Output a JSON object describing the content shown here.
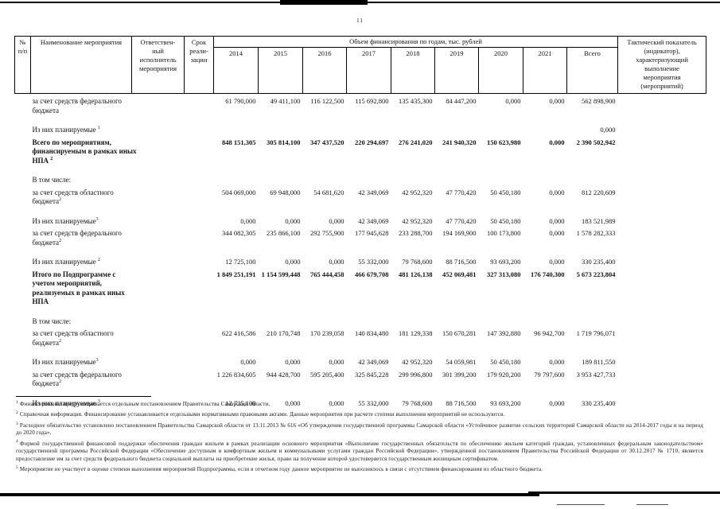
{
  "page_number": "11",
  "table": {
    "header": {
      "num": "№\nп/п",
      "name": "Наименование мероприятия",
      "executor": "Ответствен-\nный\nисполнитель\nмероприятия",
      "term": "Срок\nреали-\nзации",
      "finance_group": "Объем финансирования по годам, тыс. рублей",
      "years": [
        "2014",
        "2015",
        "2016",
        "2017",
        "2018",
        "2019",
        "2020",
        "2021",
        "Всего"
      ],
      "indicator": "Тактический показатель\n(индикатор),\nхарактеризующий\nвыполнение\nмероприятия\n(мероприятий)"
    },
    "rows": [
      {
        "label": "за счет средств федерального бюджета",
        "sup": "",
        "bold": false,
        "gap": false,
        "values": [
          "61 790,000",
          "49 411,100",
          "116 122,500",
          "115 692,800",
          "135 435,300",
          "84 447,200",
          "0,000",
          "0,000",
          "562 898,900"
        ]
      },
      {
        "label": "Из них планируемые ",
        "sup": "1",
        "bold": false,
        "gap": true,
        "values": [
          "",
          "",
          "",
          "",
          "",
          "",
          "",
          "",
          "0,000"
        ]
      },
      {
        "label": "Всего по мероприятиям, финансируемым в рамках иных НПА ",
        "sup": "2",
        "bold": true,
        "gap": false,
        "values": [
          "848 151,305",
          "305 814,100",
          "347 437,520",
          "220 294,697",
          "276 241,020",
          "241 940,320",
          "150 623,980",
          "0,000",
          "2 390 502,942"
        ]
      },
      {
        "label": "В том числе:",
        "sup": "",
        "bold": false,
        "gap": true,
        "values": []
      },
      {
        "label": "за счет средств областного бюджета",
        "sup": "2",
        "bold": false,
        "gap": false,
        "values": [
          "504 069,000",
          "69 948,000",
          "54 681,620",
          "42 349,069",
          "42 952,320",
          "47 770,420",
          "50 450,180",
          "0,000",
          "812 220,609"
        ]
      },
      {
        "label": "Из них планируемые",
        "sup": "3",
        "bold": false,
        "gap": true,
        "values": [
          "0,000",
          "0,000",
          "0,000",
          "42 349,069",
          "42 952,320",
          "47 770,420",
          "50 450,180",
          "0,000",
          "183 521,989"
        ]
      },
      {
        "label": "за счет средств федерального бюджета",
        "sup": "2",
        "bold": false,
        "gap": false,
        "values": [
          "344 082,305",
          "235 866,100",
          "292 755,900",
          "177 945,628",
          "233 288,700",
          "194 169,900",
          "100 173,800",
          "0,000",
          "1 578 282,333"
        ]
      },
      {
        "label": "Из них планируемые ",
        "sup": "2",
        "bold": false,
        "gap": true,
        "values": [
          "12 725,100",
          "0,000",
          "0,000",
          "55 332,000",
          "79 768,600",
          "88 716,500",
          "93 693,200",
          "0,000",
          "330 235,400"
        ]
      },
      {
        "label": "Итого по Подпрограмме с учетом мероприятий, реализуемых в рамках иных НПА",
        "sup": "",
        "bold": true,
        "gap": false,
        "values": [
          "1 849 251,191",
          "1 154 599,448",
          "765 444,458",
          "466 679,708",
          "481 126,138",
          "452 069,481",
          "327 313,080",
          "176 740,300",
          "5 673 223,804"
        ]
      },
      {
        "label": "В том числе:",
        "sup": "",
        "bold": false,
        "gap": true,
        "values": []
      },
      {
        "label": "за счет средств областного бюджета",
        "sup": "2",
        "bold": false,
        "gap": false,
        "values": [
          "622 416,586",
          "210 170,748",
          "170 239,058",
          "140 834,480",
          "181 129,338",
          "150 670,281",
          "147 392,880",
          "96 942,700",
          "1 719 796,071"
        ]
      },
      {
        "label": "Из них планируемые",
        "sup": "3",
        "bold": false,
        "gap": true,
        "values": [
          "0,000",
          "0,000",
          "0,000",
          "42 349,069",
          "42 952,320",
          "54 059,981",
          "50 450,180",
          "0,000",
          "189 811,550"
        ]
      },
      {
        "label": "за счет средств федерального бюджета",
        "sup": "2",
        "bold": false,
        "gap": false,
        "values": [
          "1 226 834,605",
          "944 428,700",
          "595 205,400",
          "325 845,228",
          "299 996,800",
          "301 399,200",
          "179 920,200",
          "79 797,600",
          "3 953 427,733"
        ]
      },
      {
        "label": "Из них планируемые ",
        "sup": "3",
        "bold": false,
        "gap": true,
        "values": [
          "12 725,100",
          "0,000",
          "0,000",
          "55 332,000",
          "79 768,600",
          "88 716,500",
          "93 693,200",
          "0,000",
          "330 235,400"
        ]
      }
    ]
  },
  "footnotes": [
    {
      "num": "1",
      "text": "Финансирование предусматривается отдельным постановлением Правительства Самарской области."
    },
    {
      "num": "2",
      "text": "Справочная информация. Финансирование устанавливается отдельными нормативными правовыми актами. Данные мероприятия при расчете степени выполнения мероприятий не используются."
    },
    {
      "num": "3",
      "text": "Расходное обязательство установлено постановлением Правительства Самарской области от 13.11.2013 № 616 «Об утверждении государственной программы Самарской области «Устойчивое развитие сельских территорий Самарской области на 2014-2017 годы и на период до 2020 года»."
    },
    {
      "num": "4",
      "text": "Формой государственной финансовой поддержки обеспечения граждан жильем в рамках реализации основного мероприятия «Выполнение государственных обязательств по обеспечению жильем категорий граждан, установленных федеральным законодательством» государственной программы Российской Федерации «Обеспечение доступным и комфортным жильем и коммунальными услугами граждан Российской Федерации», утвержденной постановлением Правительства Российской Федерации от 30.12.2017 № 1710, является предоставление им за счет средств федерального бюджета социальной выплаты на приобретение жилья, право на получение которой удостоверяется государственным жилищным сертификатом."
    },
    {
      "num": "5",
      "text": "Мероприятие не участвует в оценке степени выполнения мероприятий Подпрограммы, если в отчетном году данное мероприятие не выполнялось в связи с отсутствием финансирования из областного бюджета."
    }
  ]
}
